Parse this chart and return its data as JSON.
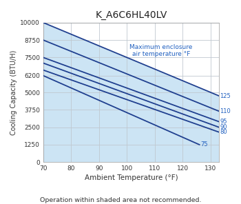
{
  "title": "K_A6C6HL40LV",
  "xlabel": "Ambient Temperature (°F)",
  "ylabel": "Cooling Capacity (BTU/H)",
  "footnote": "Operation within shaded area not recommended.",
  "annotation": "Maximum enclosure\nair temperature °F",
  "xlim": [
    70,
    133
  ],
  "ylim": [
    0,
    10000
  ],
  "xticks": [
    70,
    80,
    90,
    100,
    110,
    120,
    130
  ],
  "yticks": [
    0,
    1250,
    2500,
    3750,
    5000,
    6200,
    7500,
    8750,
    10000
  ],
  "line_color": "#1f3f8f",
  "grid_color": "#c0c8d0",
  "shade_color": "#cce4f4",
  "annotation_color": "#2060c0",
  "bg_color": "#ffffff",
  "curves": [
    {
      "label": "125",
      "x": [
        70,
        133
      ],
      "y": [
        10000,
        4750
      ]
    },
    {
      "label": "110",
      "x": [
        70,
        133
      ],
      "y": [
        8750,
        3650
      ]
    },
    {
      "label": "95",
      "x": [
        70,
        133
      ],
      "y": [
        7500,
        2900
      ]
    },
    {
      "label": "90",
      "x": [
        70,
        133
      ],
      "y": [
        7100,
        2500
      ]
    },
    {
      "label": "80",
      "x": [
        70,
        133
      ],
      "y": [
        6600,
        2150
      ]
    },
    {
      "label": "75",
      "x": [
        70,
        126
      ],
      "y": [
        6200,
        1250
      ]
    }
  ]
}
